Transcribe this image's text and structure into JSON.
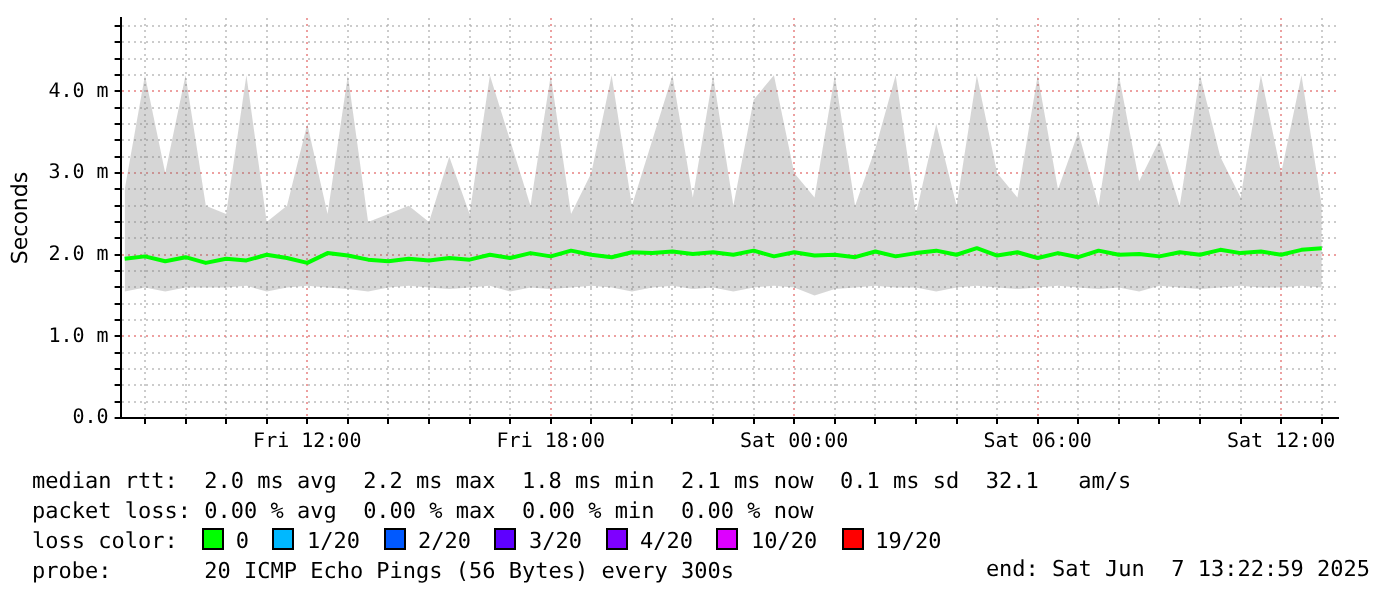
{
  "chart_data": {
    "type": "line",
    "ylabel": "Seconds",
    "legend_title": "loss color:",
    "legend": "bottom",
    "grid": true,
    "x": [
      "2025-06-06T07:30",
      "2025-06-06T08:00",
      "2025-06-06T08:30",
      "2025-06-06T09:00",
      "2025-06-06T09:30",
      "2025-06-06T10:00",
      "2025-06-06T10:30",
      "2025-06-06T11:00",
      "2025-06-06T11:30",
      "2025-06-06T12:00",
      "2025-06-06T12:30",
      "2025-06-06T13:00",
      "2025-06-06T13:30",
      "2025-06-06T14:00",
      "2025-06-06T14:30",
      "2025-06-06T15:00",
      "2025-06-06T15:30",
      "2025-06-06T16:00",
      "2025-06-06T16:30",
      "2025-06-06T17:00",
      "2025-06-06T17:30",
      "2025-06-06T18:00",
      "2025-06-06T18:30",
      "2025-06-06T19:00",
      "2025-06-06T19:30",
      "2025-06-06T20:00",
      "2025-06-06T20:30",
      "2025-06-06T21:00",
      "2025-06-06T21:30",
      "2025-06-06T22:00",
      "2025-06-06T22:30",
      "2025-06-06T23:00",
      "2025-06-06T23:30",
      "2025-06-07T00:00",
      "2025-06-07T00:30",
      "2025-06-07T01:00",
      "2025-06-07T01:30",
      "2025-06-07T02:00",
      "2025-06-07T02:30",
      "2025-06-07T03:00",
      "2025-06-07T03:30",
      "2025-06-07T04:00",
      "2025-06-07T04:30",
      "2025-06-07T05:00",
      "2025-06-07T05:30",
      "2025-06-07T06:00",
      "2025-06-07T06:30",
      "2025-06-07T07:00",
      "2025-06-07T07:30",
      "2025-06-07T08:00",
      "2025-06-07T08:30",
      "2025-06-07T09:00",
      "2025-06-07T09:30",
      "2025-06-07T10:00",
      "2025-06-07T10:30",
      "2025-06-07T11:00",
      "2025-06-07T11:30",
      "2025-06-07T12:00",
      "2025-06-07T12:30",
      "2025-06-07T13:00"
    ],
    "xlim": [
      "2025-06-06T07:24",
      "2025-06-07T13:24"
    ],
    "xticks": [
      {
        "value": "2025-06-06T08:00",
        "label": null
      },
      {
        "value": "2025-06-06T09:00",
        "label": null
      },
      {
        "value": "2025-06-06T10:00",
        "label": null
      },
      {
        "value": "2025-06-06T11:00",
        "label": null
      },
      {
        "value": "2025-06-06T12:00",
        "label": "Fri 12:00"
      },
      {
        "value": "2025-06-06T13:00",
        "label": null
      },
      {
        "value": "2025-06-06T14:00",
        "label": null
      },
      {
        "value": "2025-06-06T15:00",
        "label": null
      },
      {
        "value": "2025-06-06T16:00",
        "label": null
      },
      {
        "value": "2025-06-06T17:00",
        "label": null
      },
      {
        "value": "2025-06-06T18:00",
        "label": "Fri 18:00"
      },
      {
        "value": "2025-06-06T19:00",
        "label": null
      },
      {
        "value": "2025-06-06T20:00",
        "label": null
      },
      {
        "value": "2025-06-06T21:00",
        "label": null
      },
      {
        "value": "2025-06-06T22:00",
        "label": null
      },
      {
        "value": "2025-06-06T23:00",
        "label": null
      },
      {
        "value": "2025-06-07T00:00",
        "label": "Sat 00:00"
      },
      {
        "value": "2025-06-07T01:00",
        "label": null
      },
      {
        "value": "2025-06-07T02:00",
        "label": null
      },
      {
        "value": "2025-06-07T03:00",
        "label": null
      },
      {
        "value": "2025-06-07T04:00",
        "label": null
      },
      {
        "value": "2025-06-07T05:00",
        "label": null
      },
      {
        "value": "2025-06-07T06:00",
        "label": "Sat 06:00"
      },
      {
        "value": "2025-06-07T07:00",
        "label": null
      },
      {
        "value": "2025-06-07T08:00",
        "label": null
      },
      {
        "value": "2025-06-07T09:00",
        "label": null
      },
      {
        "value": "2025-06-07T10:00",
        "label": null
      },
      {
        "value": "2025-06-07T11:00",
        "label": null
      },
      {
        "value": "2025-06-07T12:00",
        "label": "Sat 12:00"
      },
      {
        "value": "2025-06-07T13:00",
        "label": null
      }
    ],
    "ylim": [
      0,
      4.9
    ],
    "yticks": [
      {
        "value": 0,
        "label": "0.0"
      },
      {
        "value": 0.2,
        "label": null
      },
      {
        "value": 0.4,
        "label": null
      },
      {
        "value": 0.6,
        "label": null
      },
      {
        "value": 0.8,
        "label": null
      },
      {
        "value": 1,
        "label": "1.0 m"
      },
      {
        "value": 1.2,
        "label": null
      },
      {
        "value": 1.4,
        "label": null
      },
      {
        "value": 1.6,
        "label": null
      },
      {
        "value": 1.8,
        "label": null
      },
      {
        "value": 2,
        "label": "2.0 m"
      },
      {
        "value": 2.2,
        "label": null
      },
      {
        "value": 2.4,
        "label": null
      },
      {
        "value": 2.6,
        "label": null
      },
      {
        "value": 2.8,
        "label": null
      },
      {
        "value": 3,
        "label": "3.0 m"
      },
      {
        "value": 3.2,
        "label": null
      },
      {
        "value": 3.4,
        "label": null
      },
      {
        "value": 3.6,
        "label": null
      },
      {
        "value": 3.8,
        "label": null
      },
      {
        "value": 4,
        "label": "4.0 m"
      },
      {
        "value": 4.2,
        "label": null
      },
      {
        "value": 4.4,
        "label": null
      },
      {
        "value": 4.6,
        "label": null
      },
      {
        "value": 4.8,
        "label": null
      }
    ],
    "series": [
      {
        "name": "0",
        "color": "#00ff00",
        "values": [
          1.95,
          1.98,
          1.92,
          1.97,
          1.9,
          1.95,
          1.93,
          2,
          1.96,
          1.9,
          2.02,
          1.99,
          1.94,
          1.92,
          1.95,
          1.93,
          1.96,
          1.94,
          2,
          1.96,
          2.02,
          1.98,
          2.05,
          2,
          1.97,
          2.03,
          2.02,
          2.04,
          2.01,
          2.03,
          2,
          2.05,
          1.98,
          2.03,
          1.99,
          2,
          1.97,
          2.04,
          1.98,
          2.02,
          2.05,
          2,
          2.08,
          1.99,
          2.03,
          1.96,
          2.02,
          1.97,
          2.05,
          2,
          2.01,
          1.98,
          2.03,
          2,
          2.06,
          2.02,
          2.04,
          2,
          2.06,
          2.08
        ],
        "lower": [
          1.55,
          1.6,
          1.55,
          1.6,
          1.6,
          1.6,
          1.62,
          1.55,
          1.6,
          1.62,
          1.6,
          1.58,
          1.55,
          1.6,
          1.62,
          1.6,
          1.58,
          1.6,
          1.62,
          1.55,
          1.6,
          1.58,
          1.6,
          1.62,
          1.6,
          1.55,
          1.6,
          1.62,
          1.58,
          1.6,
          1.55,
          1.6,
          1.62,
          1.6,
          1.5,
          1.58,
          1.6,
          1.62,
          1.6,
          1.6,
          1.55,
          1.6,
          1.62,
          1.6,
          1.58,
          1.6,
          1.62,
          1.6,
          1.58,
          1.6,
          1.55,
          1.62,
          1.6,
          1.58,
          1.6,
          1.62,
          1.6,
          1.6,
          1.62,
          1.6
        ],
        "upper": [
          2.8,
          4.2,
          3,
          4.2,
          2.6,
          2.5,
          4.2,
          2.4,
          2.6,
          3.6,
          2.5,
          4.2,
          2.4,
          2.5,
          2.6,
          2.4,
          3.2,
          2.5,
          4.2,
          3.4,
          2.6,
          4.2,
          2.5,
          3,
          4.2,
          2.6,
          3.4,
          4.2,
          2.7,
          4.2,
          2.6,
          3.9,
          4.2,
          3,
          2.7,
          4.2,
          2.6,
          3.3,
          4.2,
          2.5,
          3.6,
          2.6,
          4.2,
          3,
          2.7,
          4.2,
          2.8,
          3.5,
          2.6,
          4.2,
          2.9,
          3.4,
          2.6,
          4.2,
          3.2,
          2.7,
          4.2,
          3,
          4.2,
          2.6
        ]
      },
      {
        "name": "1/20",
        "color": "#00b8ff",
        "values": [
          null,
          null,
          null,
          null,
          null,
          null,
          null,
          null,
          null,
          null,
          null,
          null,
          null,
          null,
          null,
          null,
          null,
          null,
          null,
          null,
          null,
          null,
          null,
          null,
          null,
          null,
          null,
          null,
          null,
          null,
          null,
          null,
          null,
          null,
          null,
          null,
          null,
          null,
          null,
          null,
          null,
          null,
          null,
          null,
          null,
          null,
          null,
          null,
          null,
          null,
          null,
          null,
          null,
          null,
          null,
          null,
          null,
          null,
          null,
          null
        ]
      },
      {
        "name": "2/20",
        "color": "#0059ff",
        "values": [
          null,
          null,
          null,
          null,
          null,
          null,
          null,
          null,
          null,
          null,
          null,
          null,
          null,
          null,
          null,
          null,
          null,
          null,
          null,
          null,
          null,
          null,
          null,
          null,
          null,
          null,
          null,
          null,
          null,
          null,
          null,
          null,
          null,
          null,
          null,
          null,
          null,
          null,
          null,
          null,
          null,
          null,
          null,
          null,
          null,
          null,
          null,
          null,
          null,
          null,
          null,
          null,
          null,
          null,
          null,
          null,
          null,
          null,
          null,
          null
        ]
      },
      {
        "name": "3/20",
        "color": "#5e00ff",
        "values": [
          null,
          null,
          null,
          null,
          null,
          null,
          null,
          null,
          null,
          null,
          null,
          null,
          null,
          null,
          null,
          null,
          null,
          null,
          null,
          null,
          null,
          null,
          null,
          null,
          null,
          null,
          null,
          null,
          null,
          null,
          null,
          null,
          null,
          null,
          null,
          null,
          null,
          null,
          null,
          null,
          null,
          null,
          null,
          null,
          null,
          null,
          null,
          null,
          null,
          null,
          null,
          null,
          null,
          null,
          null,
          null,
          null,
          null,
          null,
          null
        ]
      },
      {
        "name": "4/20",
        "color": "#7e00ff",
        "values": [
          null,
          null,
          null,
          null,
          null,
          null,
          null,
          null,
          null,
          null,
          null,
          null,
          null,
          null,
          null,
          null,
          null,
          null,
          null,
          null,
          null,
          null,
          null,
          null,
          null,
          null,
          null,
          null,
          null,
          null,
          null,
          null,
          null,
          null,
          null,
          null,
          null,
          null,
          null,
          null,
          null,
          null,
          null,
          null,
          null,
          null,
          null,
          null,
          null,
          null,
          null,
          null,
          null,
          null,
          null,
          null,
          null,
          null,
          null,
          null
        ]
      },
      {
        "name": "10/20",
        "color": "#dd00ff",
        "values": [
          null,
          null,
          null,
          null,
          null,
          null,
          null,
          null,
          null,
          null,
          null,
          null,
          null,
          null,
          null,
          null,
          null,
          null,
          null,
          null,
          null,
          null,
          null,
          null,
          null,
          null,
          null,
          null,
          null,
          null,
          null,
          null,
          null,
          null,
          null,
          null,
          null,
          null,
          null,
          null,
          null,
          null,
          null,
          null,
          null,
          null,
          null,
          null,
          null,
          null,
          null,
          null,
          null,
          null,
          null,
          null,
          null,
          null,
          null,
          null
        ]
      },
      {
        "name": "19/20",
        "color": "#ff0000",
        "values": [
          null,
          null,
          null,
          null,
          null,
          null,
          null,
          null,
          null,
          null,
          null,
          null,
          null,
          null,
          null,
          null,
          null,
          null,
          null,
          null,
          null,
          null,
          null,
          null,
          null,
          null,
          null,
          null,
          null,
          null,
          null,
          null,
          null,
          null,
          null,
          null,
          null,
          null,
          null,
          null,
          null,
          null,
          null,
          null,
          null,
          null,
          null,
          null,
          null,
          null,
          null,
          null,
          null,
          null,
          null,
          null,
          null,
          null,
          null,
          null
        ]
      }
    ],
    "annotations": [
      "median rtt:  2.0 ms avg  2.2 ms max  1.8 ms min  2.1 ms now  0.1 ms sd  32.1   am/s",
      "packet loss: 0.00 % avg  0.00 % max  0.00 % min  0.00 % now",
      "probe:       20 ICMP Echo Pings (56 Bytes) every 300s",
      "end: Sat Jun  7 13:22:59 2025"
    ]
  }
}
